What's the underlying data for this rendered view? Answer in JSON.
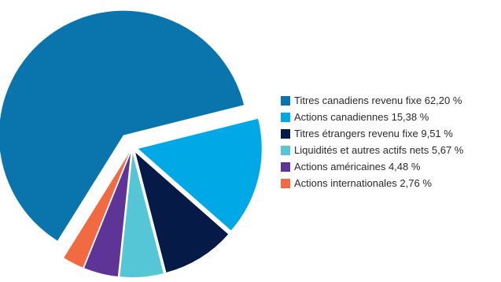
{
  "chart_data": {
    "type": "pie",
    "exploded": true,
    "legend_position": "right",
    "slices": [
      {
        "label": "Titres canadiens revenu fixe 62,20 %",
        "value": 62.2,
        "color": "#0a75ad"
      },
      {
        "label": "Actions canadiennes 15,38 %",
        "value": 15.38,
        "color": "#00a8e6"
      },
      {
        "label": "Titres étrangers revenu fixe 9,51 %",
        "value": 9.51,
        "color": "#061a48"
      },
      {
        "label": "Liquidités et autres actifs nets 5,67 %",
        "value": 5.67,
        "color": "#55c6d6"
      },
      {
        "label": "Actions américaines 4,48 %",
        "value": 4.48,
        "color": "#5e3596"
      },
      {
        "label": "Actions internationales 2,76 %",
        "value": 2.76,
        "color": "#f26a41"
      }
    ]
  }
}
